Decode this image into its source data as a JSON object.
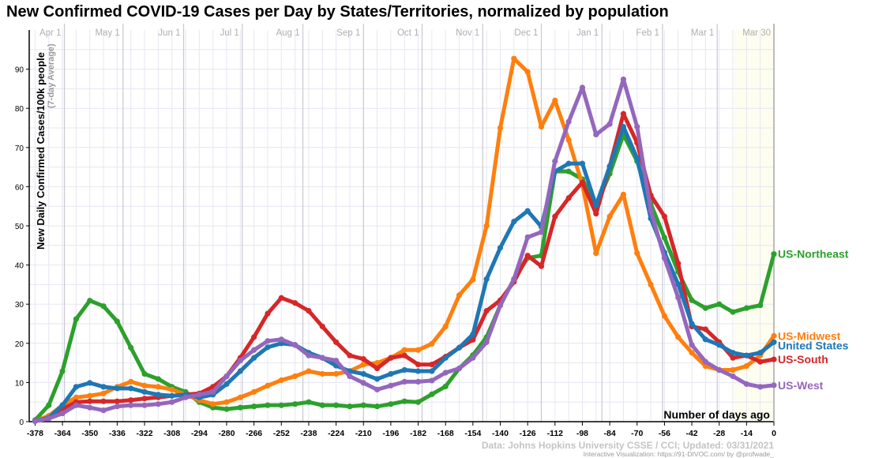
{
  "chart_data": {
    "type": "line",
    "title": "New Confirmed COVID-19 Cases per Day by States/Territories, normalized by population",
    "xlabel": "Number of days ago",
    "ylabel": "New Daily Confirmed Cases/100k people",
    "ylabel_sub": "(7-day Average)",
    "xlim": [
      -381,
      0
    ],
    "ylim": [
      0,
      100
    ],
    "grid": true,
    "x_ticks": [
      "-378",
      "-364",
      "-350",
      "-336",
      "-322",
      "-308",
      "-294",
      "-280",
      "-266",
      "-252",
      "-238",
      "-224",
      "-210",
      "-196",
      "-182",
      "-168",
      "-154",
      "-140",
      "-126",
      "-112",
      "-98",
      "-84",
      "-70",
      "-56",
      "-42",
      "-28",
      "-14",
      "0"
    ],
    "y_ticks": [
      "0",
      "10",
      "20",
      "30",
      "40",
      "50",
      "60",
      "70",
      "80",
      "90"
    ],
    "months": [
      {
        "label": "Apr 1",
        "day": -363
      },
      {
        "label": "May 1",
        "day": -333
      },
      {
        "label": "Jun 1",
        "day": -302
      },
      {
        "label": "Jul 1",
        "day": -272
      },
      {
        "label": "Aug 1",
        "day": -241
      },
      {
        "label": "Sep 1",
        "day": -210
      },
      {
        "label": "Oct 1",
        "day": -180
      },
      {
        "label": "Nov 1",
        "day": -149
      },
      {
        "label": "Dec 1",
        "day": -119
      },
      {
        "label": "Jan 1",
        "day": -88
      },
      {
        "label": "Feb 1",
        "day": -57
      },
      {
        "label": "Mar 1",
        "day": -29
      },
      {
        "label": "Mar 30",
        "day": 0
      }
    ],
    "x": [
      -378,
      -371,
      -364,
      -357,
      -350,
      -343,
      -336,
      -329,
      -322,
      -315,
      -308,
      -301,
      -294,
      -287,
      -280,
      -273,
      -266,
      -259,
      -252,
      -245,
      -238,
      -231,
      -224,
      -217,
      -210,
      -203,
      -196,
      -189,
      -182,
      -175,
      -168,
      -161,
      -154,
      -147,
      -140,
      -133,
      -126,
      -119,
      -112,
      -105,
      -98,
      -91,
      -84,
      -77,
      -70,
      -63,
      -56,
      -49,
      -42,
      -35,
      -28,
      -21,
      -14,
      -7,
      0
    ],
    "series": [
      {
        "name": "US-Northeast",
        "color": "#2ca02c",
        "values": [
          0.4,
          4.2,
          12.9,
          26.2,
          30.9,
          29.5,
          25.6,
          18.9,
          12.2,
          10.9,
          8.9,
          7.6,
          5,
          3.6,
          3.2,
          3.6,
          3.9,
          4.2,
          4.2,
          4.5,
          5,
          4.2,
          4.2,
          3.9,
          4.2,
          3.9,
          4.5,
          5.2,
          5,
          7,
          9,
          13.6,
          17,
          21.6,
          29.7,
          36.4,
          41.8,
          42.4,
          63.9,
          63.9,
          61.9,
          55.2,
          63.3,
          73.3,
          66.5,
          55.6,
          47,
          38.3,
          31,
          29,
          30,
          28,
          29,
          29.7,
          42.8
        ]
      },
      {
        "name": "US-Midwest",
        "color": "#ff7f0e",
        "values": [
          0.2,
          1.5,
          4.2,
          6.2,
          6.6,
          7.2,
          8.9,
          10.2,
          9.2,
          8.9,
          8.2,
          6.9,
          5.5,
          4.5,
          5,
          6.2,
          7.6,
          9.2,
          10.6,
          11.6,
          12.9,
          12.2,
          12.2,
          12.9,
          14.6,
          15,
          16.3,
          18.3,
          18.3,
          19.9,
          24.3,
          32.3,
          36.3,
          50,
          75,
          92.7,
          89.3,
          75.3,
          82,
          71.9,
          60.5,
          43,
          52.4,
          58,
          43,
          35,
          27,
          21.6,
          17.6,
          14.2,
          13.2,
          13.2,
          14.2,
          16.9,
          21.9
        ]
      },
      {
        "name": "US-South",
        "color": "#d62728",
        "values": [
          0.2,
          1,
          3.2,
          5,
          5.2,
          5.2,
          5.2,
          5.5,
          5.9,
          6.2,
          6.6,
          6.9,
          7.2,
          8.9,
          11.6,
          16.3,
          21.6,
          27.6,
          31.6,
          30.3,
          28.3,
          24.3,
          20.3,
          16.9,
          16,
          13.6,
          16.3,
          16.9,
          14.6,
          14.6,
          16.6,
          18.9,
          20.9,
          28.3,
          31,
          35.7,
          42.4,
          39.7,
          52.4,
          57.1,
          61.1,
          53.1,
          65.2,
          78.6,
          71.2,
          57.8,
          52.4,
          40.4,
          24.3,
          23.6,
          20.3,
          16.3,
          16.9,
          15.3,
          15.9
        ]
      },
      {
        "name": "United States",
        "color": "#1f77b4",
        "values": [
          0.2,
          1,
          4.2,
          8.9,
          9.9,
          8.9,
          8.5,
          8.5,
          7.6,
          6.9,
          6.6,
          6.9,
          6.2,
          6.9,
          9.6,
          12.9,
          16.3,
          19,
          20,
          19.6,
          17.6,
          16.3,
          14.3,
          12.9,
          12.2,
          10.9,
          12.2,
          13.2,
          12.9,
          12.9,
          16.3,
          18.9,
          22.3,
          36.4,
          44.4,
          51.1,
          53.8,
          49.8,
          63.9,
          65.9,
          65.9,
          55.2,
          65.2,
          75.3,
          67.3,
          51.9,
          43.2,
          35.1,
          25,
          21,
          19.6,
          17.6,
          16.9,
          17.6,
          20.3
        ]
      },
      {
        "name": "US-West",
        "color": "#9467bd",
        "values": [
          0.1,
          0.8,
          2.1,
          4.2,
          3.6,
          2.9,
          3.9,
          4.2,
          4.2,
          4.5,
          5,
          6.2,
          6.9,
          7.6,
          11.6,
          15.6,
          18.3,
          20.6,
          21,
          19.6,
          16.9,
          16.3,
          15.6,
          11.6,
          9.9,
          8.2,
          9.2,
          10.2,
          10.2,
          10.5,
          12.5,
          13.6,
          16.3,
          20.3,
          29.7,
          36.4,
          47.1,
          48.4,
          66.5,
          76.6,
          85.3,
          73.3,
          76,
          87.4,
          75.3,
          53.9,
          41.8,
          31.7,
          19.6,
          15.3,
          13.2,
          11.6,
          9.6,
          8.9,
          9.3
        ]
      }
    ]
  },
  "credits": {
    "source": "Data: Johns Hopkins University CSSE / CCI; Updated: 03/31/2021",
    "interactive": "Interactive Visualization: https://91-DIVOC.com/ by @profwade_"
  }
}
